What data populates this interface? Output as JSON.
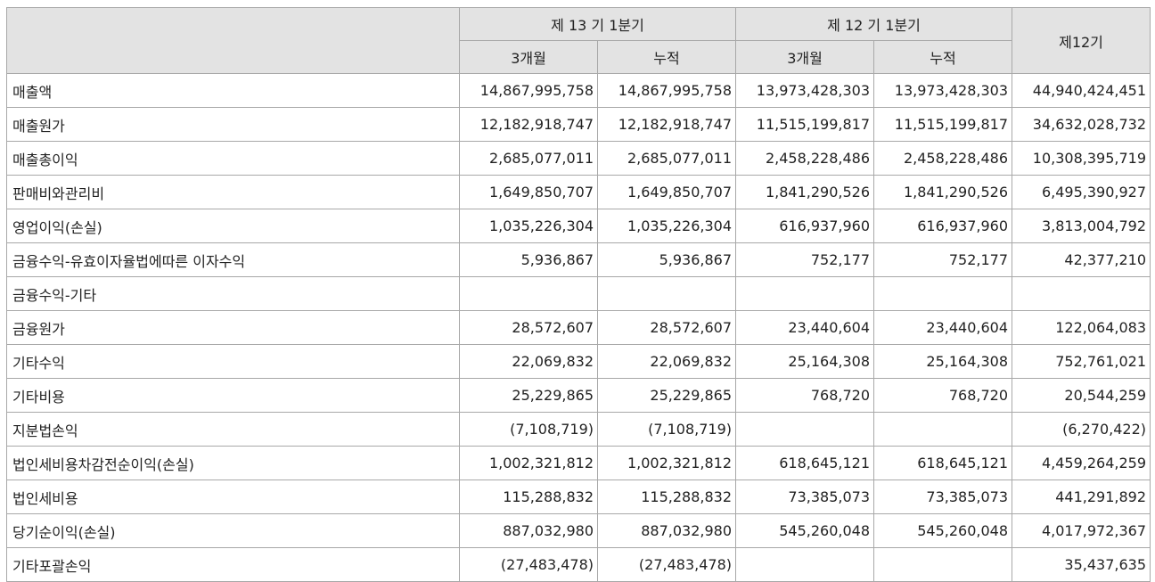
{
  "header": {
    "period_current": "제 13 기 1분기",
    "period_prior": "제 12 기 1분기",
    "period_year": "제12기",
    "col_3m": "3개월",
    "col_cum": "누적"
  },
  "rows": [
    {
      "label": "매출액",
      "v": [
        "14,867,995,758",
        "14,867,995,758",
        "13,973,428,303",
        "13,973,428,303",
        "44,940,424,451"
      ]
    },
    {
      "label": "매출원가",
      "v": [
        "12,182,918,747",
        "12,182,918,747",
        "11,515,199,817",
        "11,515,199,817",
        "34,632,028,732"
      ]
    },
    {
      "label": "매출총이익",
      "v": [
        "2,685,077,011",
        "2,685,077,011",
        "2,458,228,486",
        "2,458,228,486",
        "10,308,395,719"
      ]
    },
    {
      "label": "판매비와관리비",
      "v": [
        "1,649,850,707",
        "1,649,850,707",
        "1,841,290,526",
        "1,841,290,526",
        "6,495,390,927"
      ]
    },
    {
      "label": "영업이익(손실)",
      "v": [
        "1,035,226,304",
        "1,035,226,304",
        "616,937,960",
        "616,937,960",
        "3,813,004,792"
      ]
    },
    {
      "label": "금융수익-유효이자율법에따른 이자수익",
      "v": [
        "5,936,867",
        "5,936,867",
        "752,177",
        "752,177",
        "42,377,210"
      ]
    },
    {
      "label": "금융수익-기타",
      "v": [
        "",
        "",
        "",
        "",
        ""
      ]
    },
    {
      "label": "금융원가",
      "v": [
        "28,572,607",
        "28,572,607",
        "23,440,604",
        "23,440,604",
        "122,064,083"
      ]
    },
    {
      "label": "기타수익",
      "v": [
        "22,069,832",
        "22,069,832",
        "25,164,308",
        "25,164,308",
        "752,761,021"
      ]
    },
    {
      "label": "기타비용",
      "v": [
        "25,229,865",
        "25,229,865",
        "768,720",
        "768,720",
        "20,544,259"
      ]
    },
    {
      "label": "지분법손익",
      "v": [
        "(7,108,719)",
        "(7,108,719)",
        "",
        "",
        "(6,270,422)"
      ]
    },
    {
      "label": "법인세비용차감전순이익(손실)",
      "v": [
        "1,002,321,812",
        "1,002,321,812",
        "618,645,121",
        "618,645,121",
        "4,459,264,259"
      ]
    },
    {
      "label": "법인세비용",
      "v": [
        "115,288,832",
        "115,288,832",
        "73,385,073",
        "73,385,073",
        "441,291,892"
      ]
    },
    {
      "label": "당기순이익(손실)",
      "v": [
        "887,032,980",
        "887,032,980",
        "545,260,048",
        "545,260,048",
        "4,017,972,367"
      ]
    },
    {
      "label": "기타포괄손익",
      "v": [
        "(27,483,478)",
        "(27,483,478)",
        "",
        "",
        "35,437,635"
      ]
    }
  ]
}
